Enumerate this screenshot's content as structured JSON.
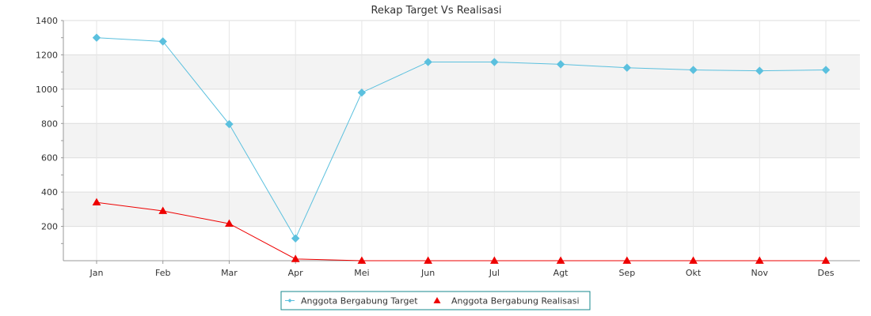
{
  "chart_data": {
    "type": "line",
    "title": "Rekap Target Vs Realisasi",
    "xlabel": "",
    "ylabel": "",
    "categories": [
      "Jan",
      "Feb",
      "Mar",
      "Apr",
      "Mei",
      "Jun",
      "Jul",
      "Agt",
      "Sep",
      "Okt",
      "Nov",
      "Des"
    ],
    "y_ticks": [
      200,
      400,
      600,
      800,
      1000,
      1200,
      1400
    ],
    "ylim": [
      0,
      1400
    ],
    "grid": true,
    "legend_position": "bottom",
    "series": [
      {
        "name": "Anggota Bergabung Target",
        "color": "#5bc0de",
        "marker": "diamond",
        "values": [
          1300,
          1278,
          796,
          130,
          980,
          1158,
          1158,
          1145,
          1125,
          1112,
          1107,
          1112
        ]
      },
      {
        "name": "Anggota Bergabung Realisasi",
        "color": "#ee0000",
        "marker": "triangle",
        "values": [
          340,
          290,
          216,
          10,
          0,
          0,
          0,
          0,
          0,
          0,
          0,
          0
        ]
      }
    ]
  }
}
